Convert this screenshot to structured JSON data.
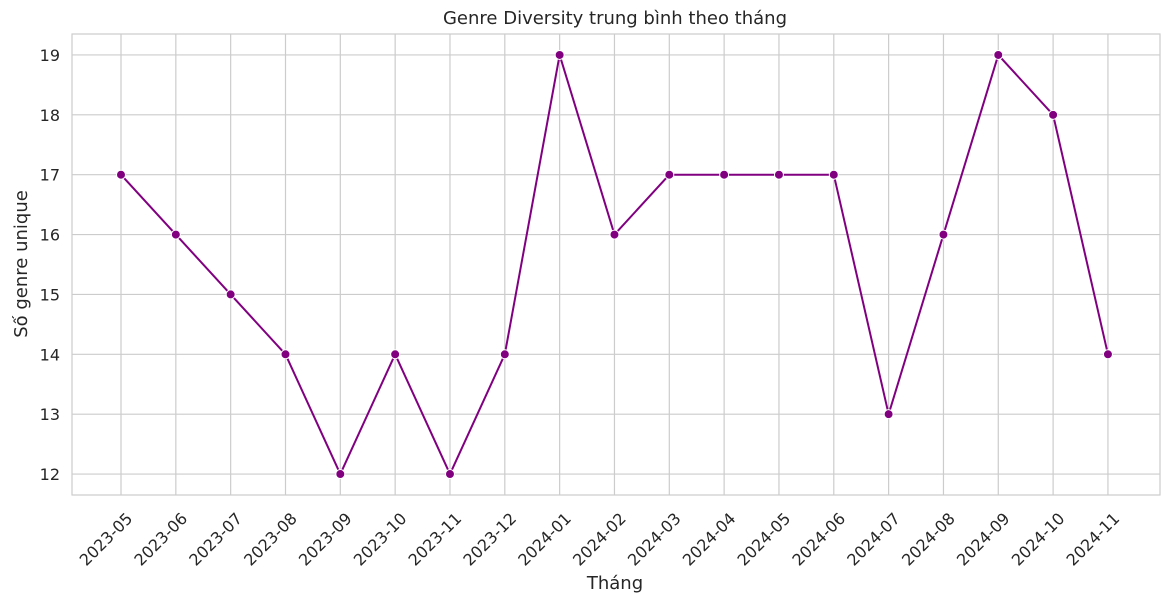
{
  "chart_data": {
    "type": "line",
    "title": "Genre Diversity trung bình theo tháng",
    "xlabel": "Tháng",
    "ylabel": "Số genre unique",
    "categories": [
      "2023-05",
      "2023-06",
      "2023-07",
      "2023-08",
      "2023-09",
      "2023-10",
      "2023-11",
      "2023-12",
      "2024-01",
      "2024-02",
      "2024-03",
      "2024-04",
      "2024-05",
      "2024-06",
      "2024-07",
      "2024-08",
      "2024-09",
      "2024-10",
      "2024-11"
    ],
    "values": [
      17,
      16,
      15,
      14,
      12,
      14,
      12,
      14,
      19,
      16,
      17,
      17,
      17,
      17,
      13,
      16,
      19,
      18,
      14
    ],
    "yticks": [
      12,
      13,
      14,
      15,
      16,
      17,
      18,
      19
    ],
    "ylim": [
      11.65,
      19.35
    ],
    "grid": true,
    "xtick_rotation": 45,
    "line_color": "#800080",
    "marker_color": "#800080"
  }
}
